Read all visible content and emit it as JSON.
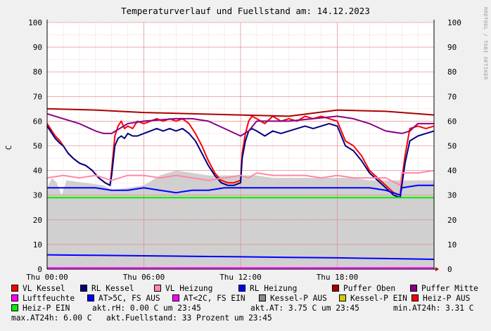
{
  "title": "Temperaturverlauf und Fuellstand am: 14.12.2023",
  "watermark": "RRDTOOL / TOBI OETIKER",
  "chart_data": {
    "type": "line",
    "ylabel": "C",
    "ylim": [
      0,
      100
    ],
    "yticks": [
      0,
      10,
      20,
      30,
      40,
      50,
      60,
      70,
      80,
      90,
      100
    ],
    "xlim_hours": [
      0,
      24
    ],
    "xticks": [
      {
        "h": 0,
        "label": "Thu 00:00"
      },
      {
        "h": 6,
        "label": "Thu 06:00"
      },
      {
        "h": 12,
        "label": "Thu 12:00"
      },
      {
        "h": 18,
        "label": "Thu 18:00"
      }
    ],
    "series": [
      {
        "name": "VL Kessel",
        "color": "#ff0000",
        "x": [
          0,
          0.2,
          0.5,
          0.8,
          1,
          1.3,
          1.6,
          2,
          2.4,
          2.8,
          3.2,
          3.6,
          3.9,
          4,
          4.2,
          4.4,
          4.6,
          4.8,
          5,
          5.3,
          5.6,
          6,
          6.4,
          6.8,
          7.2,
          7.6,
          8,
          8.4,
          8.8,
          9.2,
          9.6,
          10,
          10.4,
          10.8,
          11.2,
          11.6,
          12,
          12.1,
          12.3,
          12.5,
          12.7,
          13,
          13.5,
          14,
          14.5,
          15,
          15.5,
          16,
          16.5,
          17,
          17.5,
          18,
          18.5,
          19,
          19.5,
          20,
          20.5,
          21,
          21.5,
          21.9,
          22,
          22.2,
          22.5,
          23,
          23.5,
          24
        ],
        "y": [
          59,
          57,
          54,
          52,
          50,
          47,
          45,
          43,
          42,
          40,
          37,
          35,
          34,
          40,
          54,
          58,
          60,
          57,
          58,
          57,
          60,
          59,
          60,
          61,
          60,
          61,
          60,
          61,
          59,
          55,
          50,
          44,
          39,
          36,
          35,
          35,
          36,
          47,
          55,
          60,
          62,
          61,
          59,
          62,
          60,
          61,
          60,
          62,
          61,
          62,
          61,
          60,
          52,
          50,
          46,
          40,
          37,
          34,
          31,
          30,
          36,
          46,
          57,
          58,
          57,
          58
        ]
      },
      {
        "name": "RL Kessel",
        "color": "#000080",
        "x": [
          0,
          0.2,
          0.5,
          0.8,
          1,
          1.3,
          1.6,
          2,
          2.4,
          2.8,
          3.2,
          3.6,
          3.9,
          4,
          4.2,
          4.4,
          4.6,
          4.8,
          5,
          5.3,
          5.6,
          6,
          6.4,
          6.8,
          7.2,
          7.6,
          8,
          8.4,
          8.8,
          9.2,
          9.6,
          10,
          10.4,
          10.8,
          11.2,
          11.6,
          12,
          12.1,
          12.3,
          12.5,
          12.7,
          13,
          13.5,
          14,
          14.5,
          15,
          15.5,
          16,
          16.5,
          17,
          17.5,
          18,
          18.5,
          19,
          19.5,
          20,
          20.5,
          21,
          21.5,
          21.9,
          22,
          22.2,
          22.5,
          23,
          23.5,
          24
        ],
        "y": [
          58,
          56,
          53,
          51,
          50,
          47,
          45,
          43,
          42,
          40,
          37,
          35,
          34,
          38,
          50,
          53,
          54,
          53,
          55,
          54,
          54,
          55,
          56,
          57,
          56,
          57,
          56,
          57,
          55,
          52,
          47,
          42,
          38,
          35,
          34,
          34,
          35,
          45,
          52,
          56,
          57,
          56,
          54,
          56,
          55,
          56,
          57,
          58,
          57,
          58,
          59,
          58,
          50,
          48,
          44,
          39,
          36,
          33,
          30,
          29,
          34,
          43,
          52,
          54,
          55,
          56
        ]
      },
      {
        "name": "VL Heizung",
        "color": "#ff88aa",
        "x": [
          0,
          1,
          2,
          3,
          4,
          5,
          6,
          7,
          8,
          9,
          10,
          11,
          12,
          12.5,
          13,
          14,
          15,
          16,
          17,
          18,
          19,
          20,
          21,
          21.9,
          22,
          23,
          24
        ],
        "y": [
          37,
          38,
          37,
          38,
          36,
          38,
          38,
          37,
          38,
          37,
          36,
          37,
          38,
          37,
          39,
          38,
          38,
          38,
          37,
          38,
          37,
          37,
          37,
          34,
          39,
          39,
          40
        ]
      },
      {
        "name": "RL Heizung",
        "color": "#0000ff",
        "x": [
          0,
          1,
          2,
          3,
          4,
          5,
          6,
          7,
          8,
          9,
          10,
          11,
          12,
          13,
          14,
          15,
          16,
          17,
          18,
          19,
          20,
          21,
          21.9,
          22,
          23,
          24
        ],
        "y": [
          33,
          33,
          33,
          33,
          32,
          32,
          33,
          32,
          31,
          32,
          32,
          33,
          33,
          33,
          33,
          33,
          33,
          33,
          33,
          33,
          33,
          32,
          30,
          33,
          34,
          34
        ]
      },
      {
        "name": "Puffer Oben",
        "color": "#aa0000",
        "x": [
          0,
          3,
          6,
          9,
          12,
          15,
          18,
          21,
          24
        ],
        "y": [
          65,
          64.5,
          63.5,
          63,
          62.5,
          62,
          64.5,
          64,
          62.5
        ]
      },
      {
        "name": "Puffer Mitte",
        "color": "#880088",
        "x": [
          0,
          1,
          2,
          3,
          3.5,
          4,
          5,
          6,
          8,
          9,
          10,
          11,
          12,
          12.5,
          13,
          15,
          18,
          19,
          20,
          21,
          22,
          22.5,
          23,
          24
        ],
        "y": [
          63,
          61,
          59,
          56,
          55,
          55,
          59,
          60,
          61,
          61,
          60,
          57,
          54,
          56,
          60,
          60,
          62,
          61,
          59,
          56,
          55,
          56,
          59,
          59
        ]
      },
      {
        "name": "Luftfeuchte",
        "color": "#ff00ff",
        "x": [
          0,
          24
        ],
        "y": [
          0.5,
          0.5
        ]
      },
      {
        "name": "AT>5C, FS AUS",
        "color": "#0000ff",
        "x": [
          0,
          3,
          6,
          9,
          12,
          15,
          18,
          21,
          24
        ],
        "y": [
          5.8,
          5.6,
          5.4,
          5.2,
          5.0,
          4.8,
          4.6,
          4.3,
          4.0
        ]
      },
      {
        "name": "AT<2C, FS EIN",
        "color": "#ff00ff",
        "x": [],
        "y": []
      },
      {
        "name": "Kessel-P AUS",
        "color": "#888888",
        "x": [],
        "y": []
      },
      {
        "name": "Kessel-P EIN",
        "color": "#cccc00",
        "x": [],
        "y": []
      },
      {
        "name": "Heiz-P AUS",
        "color": "#ff0000",
        "x": [],
        "y": []
      },
      {
        "name": "Heiz-P EIN",
        "color": "#00ee00",
        "x": [
          0,
          24
        ],
        "y": [
          29,
          29
        ]
      }
    ],
    "fill_area": {
      "color": "#d0d0d0",
      "x": [
        0,
        0.3,
        0.6,
        0.9,
        1.2,
        3.5,
        4,
        6,
        7,
        8,
        9,
        10,
        11,
        12,
        13,
        14,
        15,
        16,
        17,
        18,
        19,
        20,
        21,
        22,
        23,
        24
      ],
      "y": [
        33,
        37,
        35,
        30,
        36,
        34,
        32,
        34,
        38,
        40,
        39,
        38,
        38,
        38,
        38,
        37,
        37,
        37,
        37,
        37,
        37,
        36,
        36,
        36,
        36,
        36
      ]
    },
    "legend_position": "bottom"
  },
  "stats": {
    "rh": "akt.rH: 0.00 C um 23:45",
    "at": "akt.AT: 3.75 C um 23:45",
    "min": "min.AT24h: 3.31 C",
    "max": "max.AT24h: 6.00 C",
    "fuellstand": "akt.Fuellstand:   33 Prozent um 23:45"
  }
}
